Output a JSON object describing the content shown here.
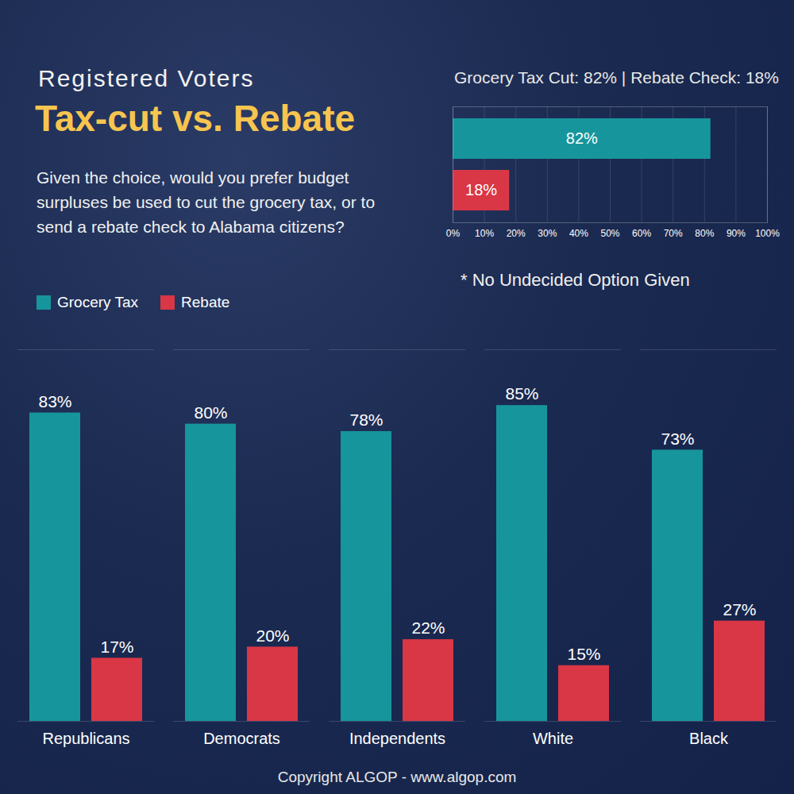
{
  "chart_data": [
    {
      "type": "bar",
      "subtitle": "Registered Voters",
      "title": "Tax-cut vs. Rebate",
      "annotation": "Given the choice, would you prefer budget surpluses be used to cut the grocery tax, or to send a rebate check to Alabama citizens?",
      "categories": [
        "Republicans",
        "Democrats",
        "Independents",
        "White",
        "Black"
      ],
      "series": [
        {
          "name": "Grocery Tax",
          "color": "#17959c",
          "values": [
            83,
            80,
            78,
            85,
            73
          ],
          "value_labels": [
            "83%",
            "80%",
            "78%",
            "85%",
            "73%"
          ]
        },
        {
          "name": "Rebate",
          "color": "#d93646",
          "values": [
            17,
            20,
            22,
            15,
            27
          ],
          "value_labels": [
            "17%",
            "20%",
            "22%",
            "15%",
            "27%"
          ]
        }
      ],
      "ylim": [
        0,
        100
      ],
      "yticks": [],
      "tick_labels": "x",
      "data_labels": true,
      "legend": "top-left",
      "caption": "Copyright ALGOP -  www.algop.com"
    },
    {
      "type": "bar",
      "orientation": "horizontal",
      "title": "Grocery Tax Cut: 82% | Rebate Check: 18%",
      "annotation": "* No Undecided Option Given",
      "categories": [
        null,
        null
      ],
      "values": [
        82,
        18
      ],
      "value_labels": [
        "82%",
        "18%"
      ],
      "colors": [
        "#17959c",
        "#d93646"
      ],
      "xlim": [
        0,
        100
      ],
      "xticks": [
        {
          "value": 0,
          "label": "0%"
        },
        {
          "value": 10,
          "label": "10%"
        },
        {
          "value": 20,
          "label": "20%"
        },
        {
          "value": 30,
          "label": "30%"
        },
        {
          "value": 40,
          "label": "40%"
        },
        {
          "value": 50,
          "label": "50%"
        },
        {
          "value": 60,
          "label": "60%"
        },
        {
          "value": 70,
          "label": "70%"
        },
        {
          "value": 80,
          "label": "80%"
        },
        {
          "value": 90,
          "label": "90%"
        },
        {
          "value": 100,
          "label": "100%"
        }
      ],
      "tick_labels": "x",
      "data_labels": true
    }
  ]
}
